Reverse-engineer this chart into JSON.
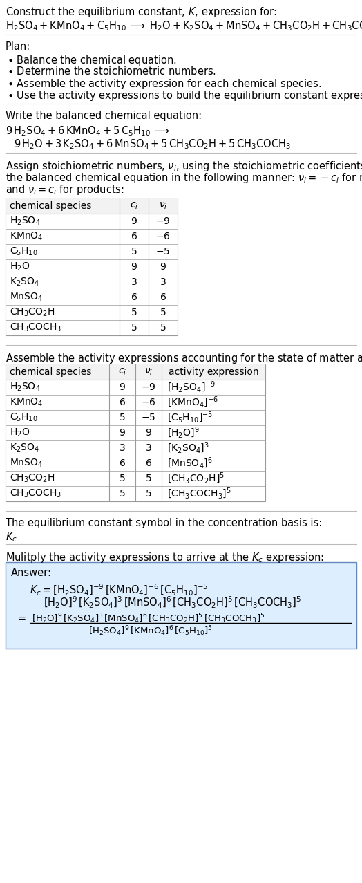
{
  "bg_color": "#ffffff",
  "text_color": "#000000",
  "table_border": "#999999",
  "answer_box_color": "#ddeeff",
  "answer_box_border": "#6688bb",
  "font_size_title": 10.5,
  "font_size_body": 10.5,
  "font_size_table": 10.0,
  "font_size_small": 9.5,
  "table1_cols": [
    "chemical species",
    "c_i",
    "nu_i"
  ],
  "table1_rows": [
    [
      "H_2SO_4",
      "9",
      "-9"
    ],
    [
      "KMnO_4",
      "6",
      "-6"
    ],
    [
      "C_5H_{10}",
      "5",
      "-5"
    ],
    [
      "H_2O",
      "9",
      "9"
    ],
    [
      "K_2SO_4",
      "3",
      "3"
    ],
    [
      "MnSO_4",
      "6",
      "6"
    ],
    [
      "CH_3CO_2H",
      "5",
      "5"
    ],
    [
      "CH_3COCH_3",
      "5",
      "5"
    ]
  ],
  "table2_rows": [
    [
      "H_2SO_4",
      "9",
      "-9",
      "[H_2SO_4]^{-9}"
    ],
    [
      "KMnO_4",
      "6",
      "-6",
      "[KMnO_4]^{-6}"
    ],
    [
      "C_5H_{10}",
      "5",
      "-5",
      "[C_5H_{10}]^{-5}"
    ],
    [
      "H_2O",
      "9",
      "9",
      "[H_2O]^9"
    ],
    [
      "K_2SO_4",
      "3",
      "3",
      "[K_2SO_4]^3"
    ],
    [
      "MnSO_4",
      "6",
      "6",
      "[MnSO_4]^6"
    ],
    [
      "CH_3CO_2H",
      "5",
      "5",
      "[CH_3CO_2H]^5"
    ],
    [
      "CH_3COCH_3",
      "5",
      "5",
      "[CH_3COCH_3]^5"
    ]
  ]
}
